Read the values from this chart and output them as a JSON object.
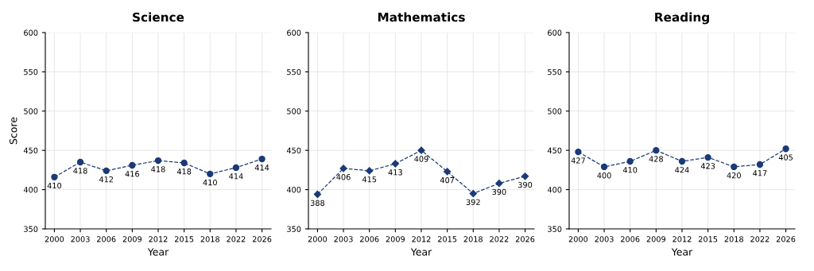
{
  "chart_data": [
    {
      "type": "line",
      "title": "Science",
      "xlabel": "Year",
      "ylabel": "Score",
      "categories": [
        "2000",
        "2003",
        "2006",
        "2009",
        "2012",
        "2015",
        "2018",
        "2022",
        "2026"
      ],
      "values": [
        416,
        435,
        424,
        431,
        437,
        434,
        420,
        428,
        439
      ],
      "annotations": [
        {
          "text": "410",
          "x": "2000",
          "y": 416
        },
        {
          "text": "418",
          "x": "2003",
          "y": 435
        },
        {
          "text": "412",
          "x": "2006",
          "y": 424
        },
        {
          "text": "416",
          "x": "2009",
          "y": 431
        },
        {
          "text": "418",
          "x": "2012",
          "y": 437
        },
        {
          "text": "418",
          "x": "2015",
          "y": 434
        },
        {
          "text": "410",
          "x": "2018",
          "y": 420
        },
        {
          "text": "414",
          "x": "2022",
          "y": 428
        },
        {
          "text": "414",
          "x": "2026",
          "y": 439
        }
      ],
      "color": "#1b3a78",
      "marker": "circle",
      "line_style": "dashed",
      "ylim": [
        350,
        600
      ],
      "yticks": [
        350,
        400,
        450,
        500,
        550,
        600
      ],
      "grid": true
    },
    {
      "type": "line",
      "title": "Mathematics",
      "xlabel": "Year",
      "categories": [
        "2000",
        "2003",
        "2006",
        "2009",
        "2012",
        "2015",
        "2018",
        "2022",
        "2026"
      ],
      "values": [
        394,
        427,
        424,
        433,
        450,
        423,
        395,
        408,
        417
      ],
      "annotations": [
        {
          "text": "388",
          "x": "2000",
          "y": 394
        },
        {
          "text": "406",
          "x": "2003",
          "y": 427
        },
        {
          "text": "415",
          "x": "2006",
          "y": 424
        },
        {
          "text": "413",
          "x": "2009",
          "y": 433
        },
        {
          "text": "409",
          "x": "2012",
          "y": 450
        },
        {
          "text": "407",
          "x": "2015",
          "y": 423
        },
        {
          "text": "392",
          "x": "2018",
          "y": 395
        },
        {
          "text": "390",
          "x": "2022",
          "y": 408
        },
        {
          "text": "390",
          "x": "2026",
          "y": 417
        }
      ],
      "color": "#1b3a78",
      "marker": "diamond",
      "line_style": "dashed",
      "ylim": [
        350,
        600
      ],
      "yticks": [
        350,
        400,
        450,
        500,
        550,
        600
      ],
      "grid": true
    },
    {
      "type": "line",
      "title": "Reading",
      "xlabel": "Year",
      "categories": [
        "2000",
        "2003",
        "2006",
        "2009",
        "2012",
        "2015",
        "2018",
        "2022",
        "2026"
      ],
      "values": [
        448,
        429,
        436,
        450,
        436,
        441,
        429,
        432,
        452
      ],
      "annotations": [
        {
          "text": "427",
          "x": "2000",
          "y": 448
        },
        {
          "text": "400",
          "x": "2003",
          "y": 429
        },
        {
          "text": "410",
          "x": "2006",
          "y": 436
        },
        {
          "text": "428",
          "x": "2009",
          "y": 450
        },
        {
          "text": "424",
          "x": "2012",
          "y": 436
        },
        {
          "text": "423",
          "x": "2015",
          "y": 441
        },
        {
          "text": "420",
          "x": "2018",
          "y": 429
        },
        {
          "text": "417",
          "x": "2022",
          "y": 432
        },
        {
          "text": "405",
          "x": "2026",
          "y": 452
        }
      ],
      "color": "#1b3a78",
      "marker": "circle",
      "line_style": "dashed",
      "ylim": [
        350,
        600
      ],
      "yticks": [
        350,
        400,
        450,
        500,
        550,
        600
      ],
      "grid": true
    }
  ]
}
